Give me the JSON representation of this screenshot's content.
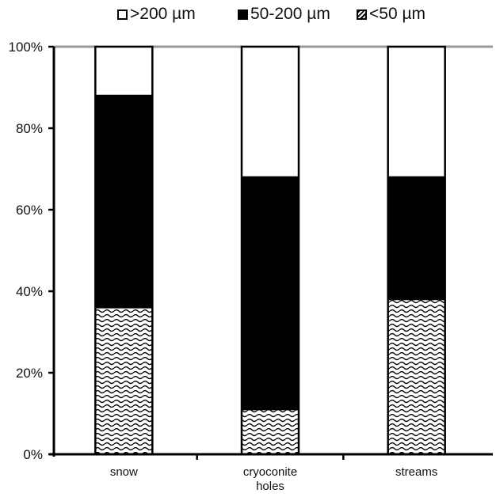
{
  "chart_data": {
    "type": "bar",
    "stacked": true,
    "categories": [
      "snow",
      "cryoconite\nholes",
      "streams"
    ],
    "series": [
      {
        "name": "<50 µm",
        "values": [
          36,
          11,
          38
        ],
        "pattern": "wave"
      },
      {
        "name": "50-200 µm",
        "values": [
          52,
          57,
          30
        ],
        "color": "#000000"
      },
      {
        "name": ">200 µm",
        "values": [
          12,
          32,
          32
        ],
        "color": "#ffffff"
      }
    ],
    "yticks": [
      "0%",
      "20%",
      "40%",
      "60%",
      "80%",
      "100%"
    ],
    "ylim": [
      0,
      100
    ],
    "legend_position": "top"
  },
  "legend": [
    {
      "label": ">200 µm",
      "swatch": "white"
    },
    {
      "label": "50-200 µm",
      "swatch": "black"
    },
    {
      "label": "<50 µm",
      "swatch": "wave"
    }
  ]
}
